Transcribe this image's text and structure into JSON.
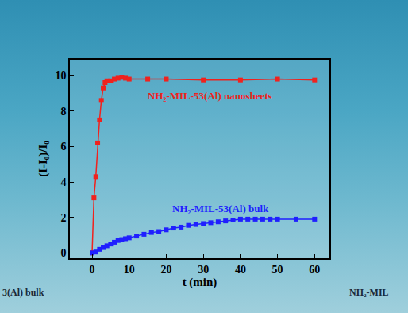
{
  "chart_data": {
    "type": "line",
    "x_label": "t (min)",
    "y_label": "(I-I₀)/I₀",
    "xlim": [
      -6,
      64
    ],
    "xticks": [
      0,
      10,
      20,
      30,
      40,
      50,
      60
    ],
    "ylim": [
      -0.3,
      10.9
    ],
    "yticks": [
      0,
      2,
      4,
      6,
      8,
      10
    ],
    "grid": false,
    "series": [
      {
        "name": "NH₂-MIL-53(Al) nanosheets",
        "color": "#f0221e",
        "marker": "square",
        "line_style": "solid",
        "x": [
          0,
          0.5,
          1,
          1.5,
          2,
          2.5,
          3,
          3.5,
          4,
          5,
          6,
          7,
          8,
          9,
          10,
          15,
          20,
          30,
          40,
          50,
          60
        ],
        "values": [
          0,
          3.1,
          4.3,
          6.2,
          7.5,
          8.6,
          9.3,
          9.6,
          9.7,
          9.7,
          9.8,
          9.85,
          9.9,
          9.85,
          9.8,
          9.8,
          9.8,
          9.75,
          9.75,
          9.8,
          9.75
        ]
      },
      {
        "name": "NH₂-MIL-53(Al) bulk",
        "color": "#1f1fff",
        "marker": "square",
        "line_style": "solid",
        "x": [
          0,
          1,
          2,
          3,
          4,
          5,
          6,
          7,
          8,
          9,
          10,
          12,
          14,
          16,
          18,
          20,
          22,
          24,
          26,
          28,
          30,
          32,
          34,
          36,
          38,
          40,
          42,
          44,
          46,
          48,
          50,
          55,
          60
        ],
        "values": [
          0,
          0.05,
          0.2,
          0.3,
          0.4,
          0.5,
          0.6,
          0.7,
          0.75,
          0.8,
          0.85,
          0.95,
          1.05,
          1.15,
          1.2,
          1.3,
          1.4,
          1.45,
          1.55,
          1.6,
          1.65,
          1.7,
          1.75,
          1.8,
          1.85,
          1.9,
          1.9,
          1.9,
          1.9,
          1.9,
          1.9,
          1.9,
          1.9
        ]
      }
    ],
    "annotations": [
      "3(Al) bulk",
      "NH₂-MIL"
    ]
  }
}
